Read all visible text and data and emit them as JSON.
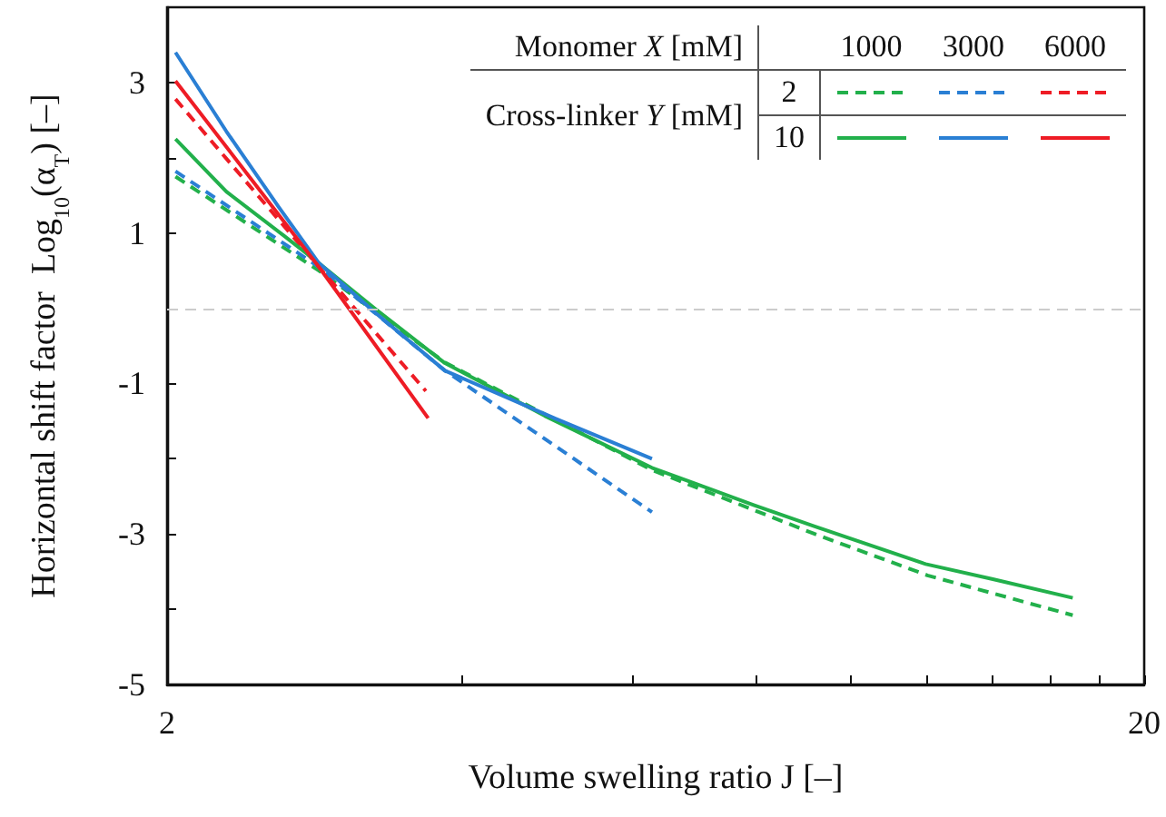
{
  "chart_data": {
    "type": "line",
    "xlabel": "Volume swelling ratio J [–]",
    "ylabel": "Horizontal shift factor  Log$_{10}$(α$_{T}$) [–]",
    "log": "x",
    "xlim": [
      2,
      20
    ],
    "xticks": [
      2,
      {
        "value": 4,
        "label": null
      },
      {
        "value": 6,
        "label": null
      },
      {
        "value": 8,
        "label": null
      },
      {
        "value": 10,
        "label": null
      },
      {
        "value": 12,
        "label": null
      },
      {
        "value": 14,
        "label": null
      },
      {
        "value": 16,
        "label": null
      },
      {
        "value": 18,
        "label": null
      },
      20
    ],
    "ylim": [
      -5,
      4
    ],
    "yticks": [
      -5,
      {
        "value": -4,
        "label": null
      },
      -3,
      {
        "value": -2,
        "label": null
      },
      -1,
      {
        "value": 0,
        "label": null
      },
      1,
      {
        "value": 2,
        "label": null
      },
      3
    ],
    "grid": false,
    "marker": "none",
    "annotations": [
      "Monomer X [mM]",
      "Cross-linker Y [mM]",
      "1000",
      "3000",
      "6000",
      "2",
      "10"
    ],
    "ref_lines": [
      {
        "axis": "y",
        "value": 0,
        "label": null,
        "color": "#cccccc",
        "line_style": "dashed"
      }
    ],
    "series": [
      {
        "color": "#22b04b",
        "line_style": "dashed",
        "x": [
          2.04,
          2.86,
          3.85,
          6.27,
          9.2,
          12,
          16.9
        ],
        "values": [
          1.75,
          0.5,
          -0.72,
          -2.15,
          -3.0,
          -3.55,
          -4.08
        ]
      },
      {
        "color": "#2a7fd4",
        "line_style": "dashed",
        "x": [
          2.04,
          2.86,
          3.85,
          6.27
        ],
        "values": [
          1.82,
          0.55,
          -0.83,
          -2.71
        ]
      },
      {
        "color": "#ee1c25",
        "line_style": "dashed",
        "x": [
          2.04,
          2.86,
          3.68
        ],
        "values": [
          2.78,
          0.55,
          -1.1
        ]
      },
      {
        "color": "#22b04b",
        "line_style": "solid",
        "x": [
          2.04,
          2.3,
          2.63,
          2.86,
          3.26,
          3.85,
          4.87,
          6.27,
          7.98,
          9.2,
          11.95,
          14,
          16.9
        ],
        "values": [
          2.25,
          1.55,
          0.97,
          0.6,
          0.0,
          -0.73,
          -1.43,
          -2.12,
          -2.62,
          -2.9,
          -3.4,
          -3.6,
          -3.85
        ]
      },
      {
        "color": "#2a7fd4",
        "line_style": "solid",
        "x": [
          2.04,
          2.3,
          2.6,
          2.86,
          3.26,
          3.85,
          5.0,
          6.27
        ],
        "values": [
          3.4,
          2.35,
          1.35,
          0.6,
          -0.05,
          -0.83,
          -1.47,
          -2.0
        ]
      },
      {
        "color": "#ee1c25",
        "line_style": "solid",
        "x": [
          2.04,
          2.86,
          3.7
        ],
        "values": [
          3.02,
          0.55,
          -1.46
        ]
      }
    ]
  }
}
